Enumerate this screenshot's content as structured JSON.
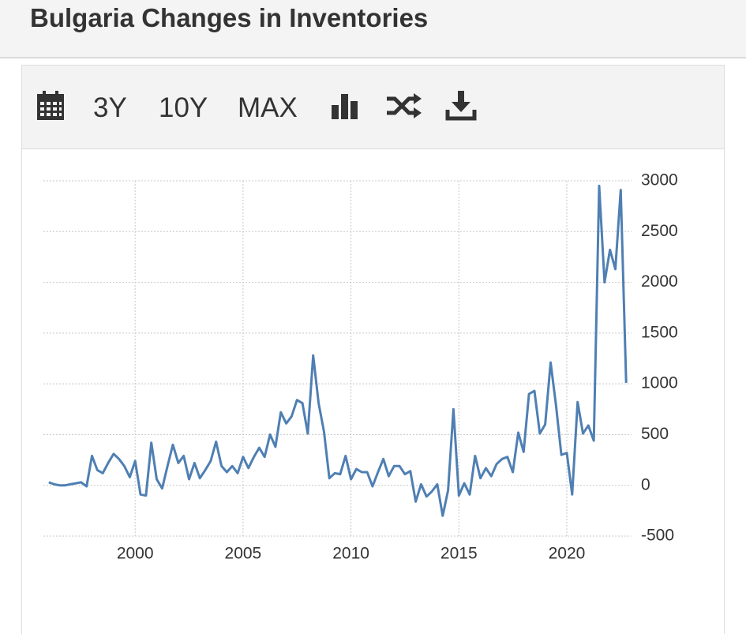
{
  "header": {
    "title": "Bulgaria Changes in Inventories"
  },
  "toolbar": {
    "ranges": [
      "3Y",
      "10Y",
      "MAX"
    ]
  },
  "chart_data": {
    "type": "line",
    "color": "#4f7fb3",
    "grid": true,
    "x": [
      1996,
      1996.25,
      1996.5,
      1996.75,
      1997,
      1997.25,
      1997.5,
      1997.75,
      1998,
      1998.25,
      1998.5,
      1998.75,
      1999,
      1999.25,
      1999.5,
      1999.75,
      2000,
      2000.25,
      2000.5,
      2000.75,
      2001,
      2001.25,
      2001.5,
      2001.75,
      2002,
      2002.25,
      2002.5,
      2002.75,
      2003,
      2003.25,
      2003.5,
      2003.75,
      2004,
      2004.25,
      2004.5,
      2004.75,
      2005,
      2005.25,
      2005.5,
      2005.75,
      2006,
      2006.25,
      2006.5,
      2006.75,
      2007,
      2007.25,
      2007.5,
      2007.75,
      2008,
      2008.25,
      2008.5,
      2008.75,
      2009,
      2009.25,
      2009.5,
      2009.75,
      2010,
      2010.25,
      2010.5,
      2010.75,
      2011,
      2011.25,
      2011.5,
      2011.75,
      2012,
      2012.25,
      2012.5,
      2012.75,
      2013,
      2013.25,
      2013.5,
      2013.75,
      2014,
      2014.25,
      2014.5,
      2014.75,
      2015,
      2015.25,
      2015.5,
      2015.75,
      2016,
      2016.25,
      2016.5,
      2016.75,
      2017,
      2017.25,
      2017.5,
      2017.75,
      2018,
      2018.25,
      2018.5,
      2018.75,
      2019,
      2019.25,
      2019.5,
      2019.75,
      2020,
      2020.25,
      2020.5,
      2020.75,
      2021,
      2021.25,
      2021.5,
      2021.75,
      2022,
      2022.25,
      2022.5,
      2022.75
    ],
    "values": [
      30,
      10,
      0,
      0,
      10,
      20,
      30,
      -10,
      290,
      150,
      120,
      220,
      310,
      260,
      190,
      80,
      240,
      -90,
      -100,
      420,
      60,
      -30,
      190,
      400,
      220,
      290,
      60,
      220,
      70,
      150,
      240,
      430,
      190,
      130,
      190,
      120,
      280,
      170,
      280,
      370,
      280,
      500,
      380,
      720,
      610,
      680,
      840,
      810,
      510,
      1280,
      810,
      530,
      70,
      120,
      110,
      290,
      60,
      160,
      130,
      130,
      -10,
      130,
      260,
      90,
      190,
      190,
      110,
      140,
      -160,
      10,
      -110,
      -60,
      10,
      -300,
      -50,
      750,
      -100,
      20,
      -90,
      290,
      70,
      170,
      90,
      210,
      260,
      280,
      130,
      520,
      330,
      900,
      930,
      510,
      600,
      1210,
      790,
      300,
      320,
      -90,
      820,
      510,
      590,
      440,
      2950,
      2000,
      2320,
      2130,
      2910,
      1010
    ],
    "xlim": [
      1995.75,
      2023
    ],
    "xticks": [
      2000,
      2005,
      2010,
      2015,
      2020
    ],
    "ylim": [
      -500,
      3000
    ],
    "yticks": [
      -500,
      0,
      500,
      1000,
      1500,
      2000,
      2500,
      3000
    ]
  }
}
